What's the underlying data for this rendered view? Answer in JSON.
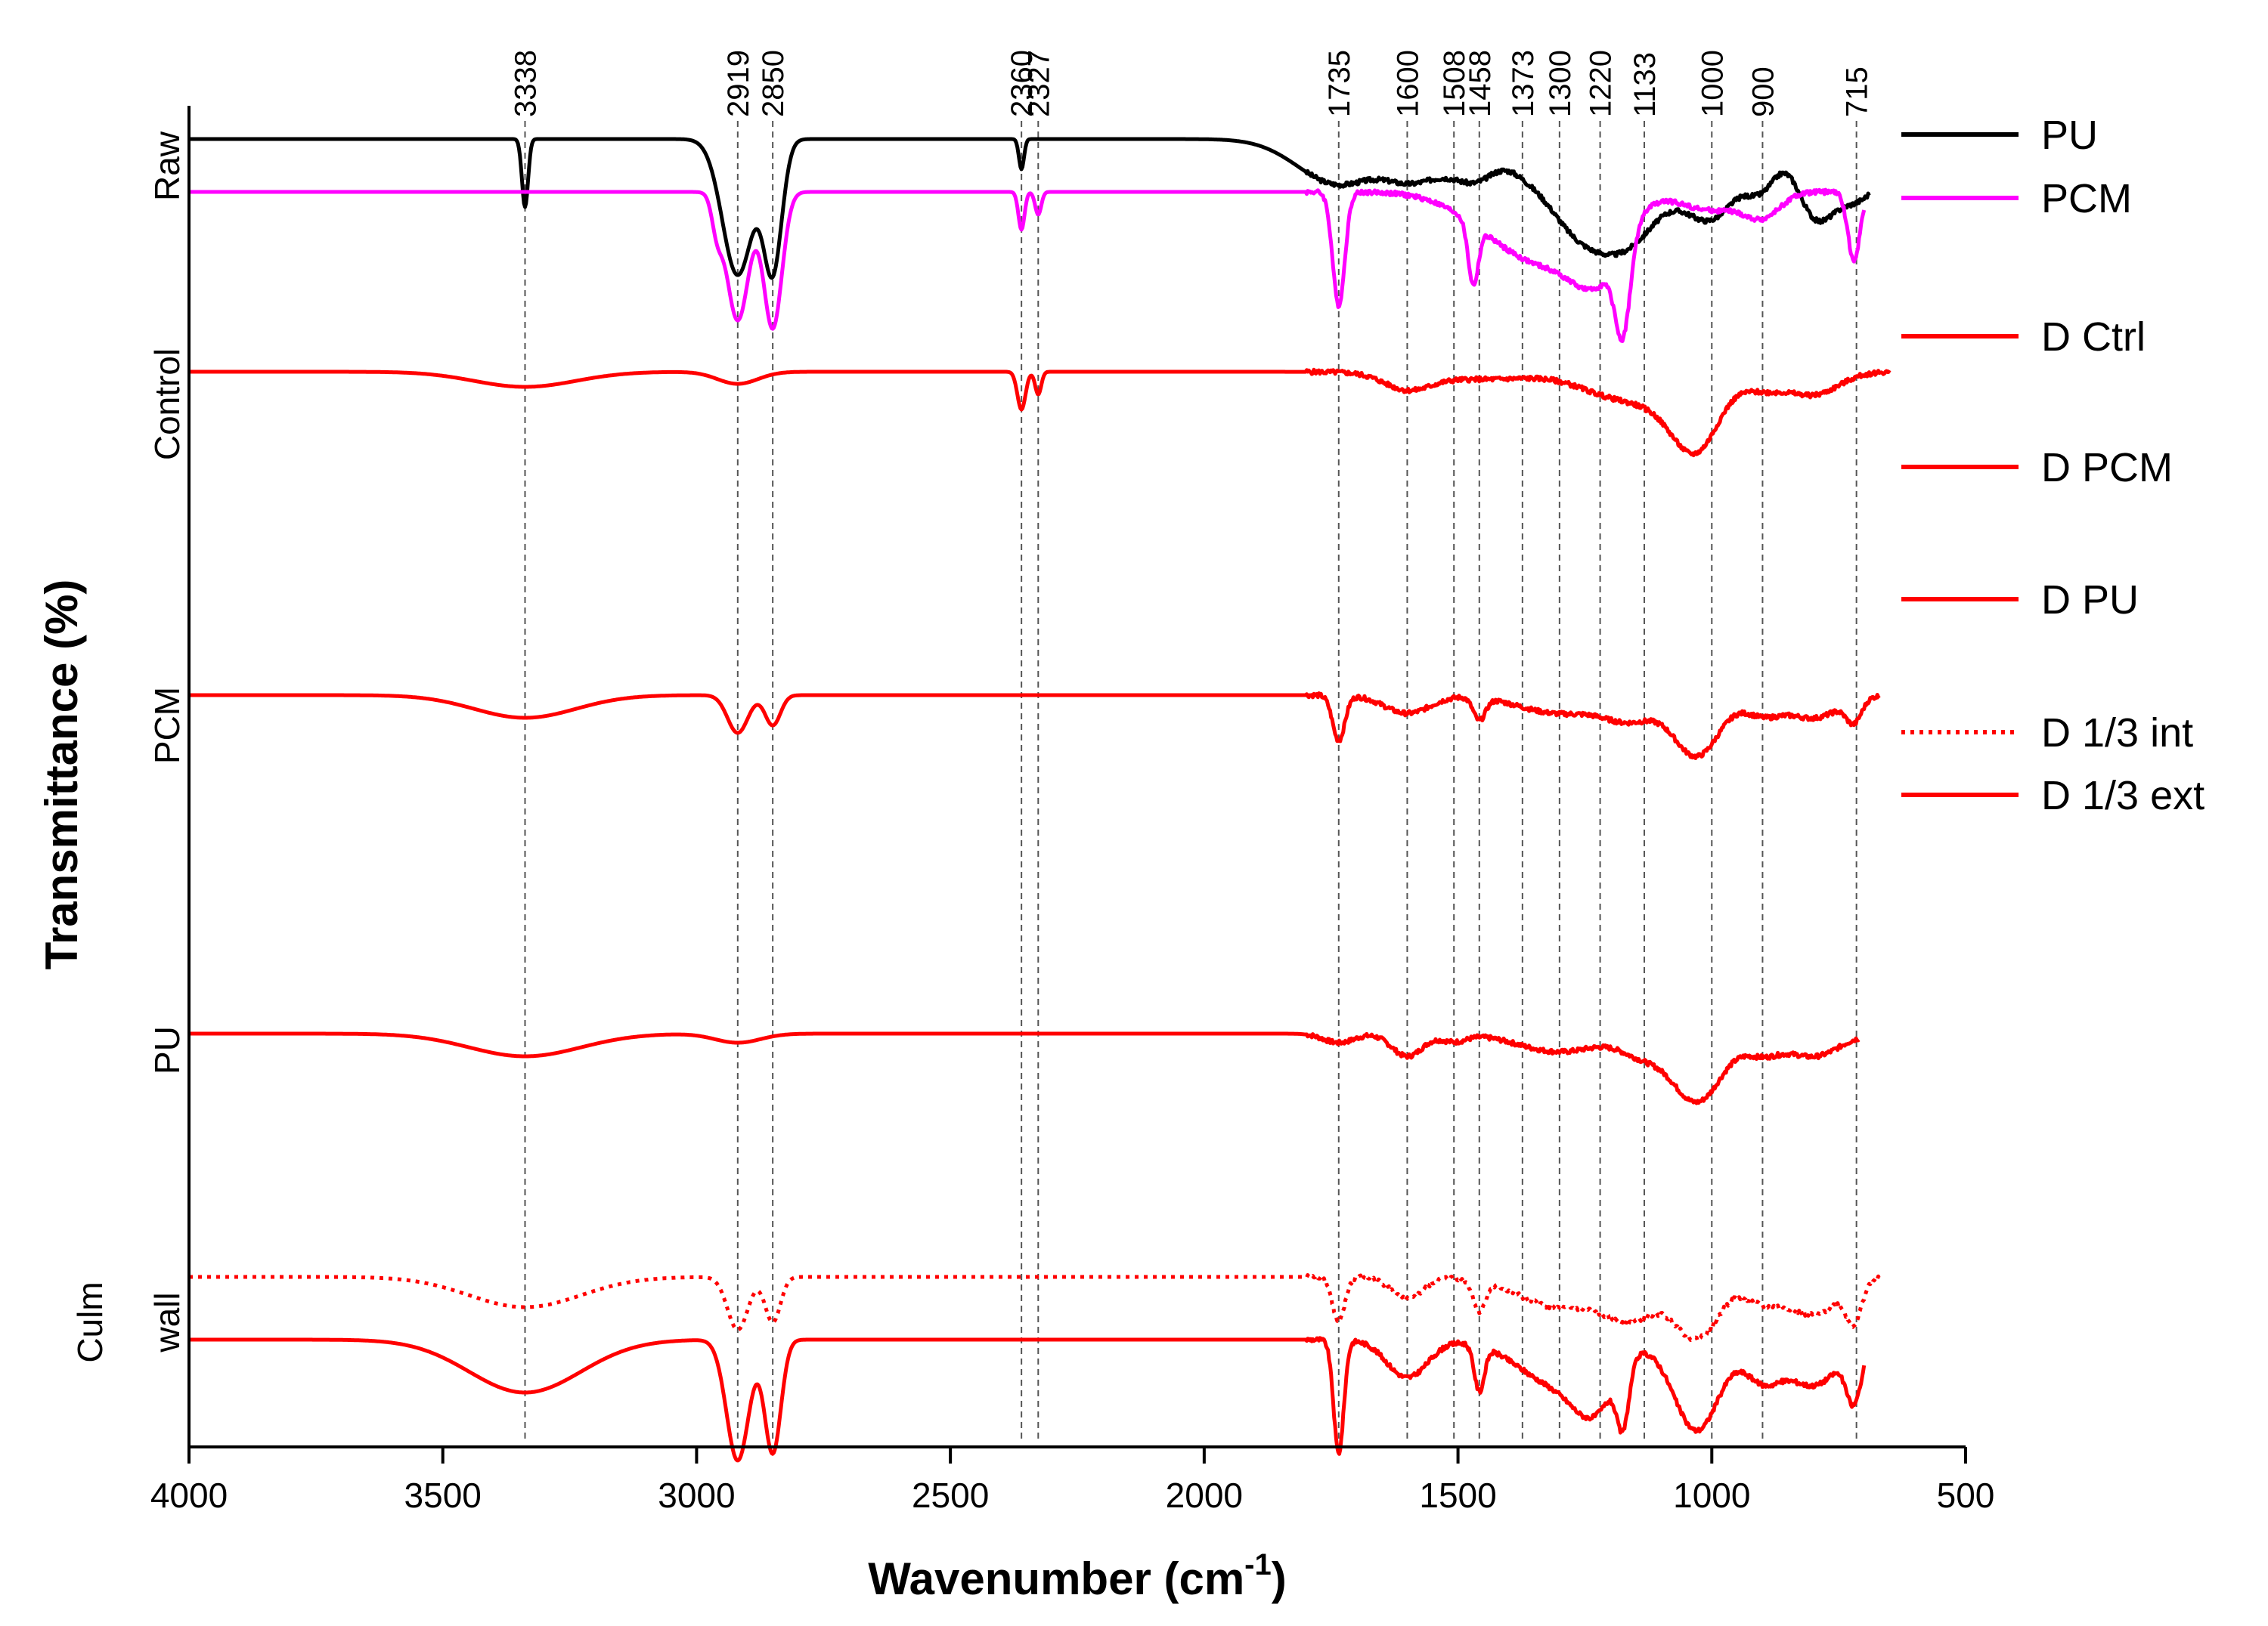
{
  "chart_data": {
    "type": "line",
    "title": "",
    "xlabel": "Wavenumber (cm",
    "xlabel_sup": "-1",
    "xlabel_close": ")",
    "ylabel": "Transmittance (%)",
    "xlim": [
      4000,
      500
    ],
    "xticks": [
      4000,
      3500,
      3000,
      2500,
      2000,
      1500,
      1000,
      500
    ],
    "peaks": [
      3338,
      2919,
      2850,
      2360,
      2327,
      1735,
      1600,
      1508,
      1458,
      1373,
      1300,
      1220,
      1133,
      1000,
      900,
      715
    ],
    "group_labels": [
      {
        "text": "Raw"
      },
      {
        "text": "Control"
      },
      {
        "text": "PCM"
      },
      {
        "text": "PU"
      },
      {
        "text": "Culm"
      },
      {
        "text": "wall"
      }
    ],
    "legend": [
      {
        "name": "PU",
        "color": "#000000",
        "style": "solid"
      },
      {
        "name": "PCM",
        "color": "#ff00ff",
        "style": "solid"
      },
      {
        "name": "D Ctrl",
        "color": "#ff0000",
        "style": "solid"
      },
      {
        "name": "D PCM",
        "color": "#ff0000",
        "style": "solid"
      },
      {
        "name": "D PU",
        "color": "#ff0000",
        "style": "solid"
      },
      {
        "name": "D 1/3 int",
        "color": "#ff0000",
        "style": "dotted"
      },
      {
        "name": "D 1/3 ext",
        "color": "#ff0000",
        "style": "solid"
      }
    ],
    "series": [
      {
        "name": "PU",
        "color": "#000000",
        "style": "solid",
        "baseline": 100,
        "dips": [
          [
            3338,
            45,
            6
          ],
          [
            2919,
            90,
            30
          ],
          [
            2850,
            85,
            18
          ],
          [
            2360,
            20,
            5
          ],
          [
            1735,
            30,
            80
          ],
          [
            1600,
            15,
            45
          ],
          [
            1508,
            20,
            65
          ],
          [
            1458,
            12,
            35
          ],
          [
            1373,
            10,
            35
          ],
          [
            1300,
            18,
            50
          ],
          [
            1220,
            60,
            75
          ],
          [
            1133,
            30,
            60
          ],
          [
            1000,
            50,
            55
          ],
          [
            900,
            25,
            30
          ],
          [
            800,
            40,
            35
          ],
          [
            715,
            40,
            55
          ]
        ],
        "tail": 690
      },
      {
        "name": "PCM",
        "color": "#ff00ff",
        "style": "solid",
        "baseline": 100,
        "dips": [
          [
            2960,
            20,
            10
          ],
          [
            2919,
            85,
            22
          ],
          [
            2850,
            90,
            18
          ],
          [
            2360,
            25,
            6
          ],
          [
            2327,
            15,
            6
          ],
          [
            1735,
            75,
            12
          ],
          [
            1470,
            40,
            10
          ],
          [
            1400,
            25,
            90
          ],
          [
            1300,
            30,
            80
          ],
          [
            1220,
            40,
            50
          ],
          [
            1175,
            60,
            15
          ],
          [
            1000,
            12,
            60
          ],
          [
            900,
            15,
            35
          ],
          [
            720,
            45,
            12
          ]
        ],
        "tail": 700
      },
      {
        "name": "D Ctrl",
        "color": "#ff0000",
        "style": "solid",
        "baseline": 100,
        "dips": [
          [
            3338,
            10,
            100
          ],
          [
            2919,
            8,
            40
          ],
          [
            2360,
            25,
            8
          ],
          [
            2327,
            15,
            6
          ],
          [
            1600,
            10,
            45
          ],
          [
            1450,
            5,
            120
          ],
          [
            1220,
            8,
            60
          ],
          [
            1100,
            20,
            80
          ],
          [
            1030,
            40,
            45
          ],
          [
            900,
            10,
            40
          ],
          [
            800,
            15,
            50
          ]
        ],
        "tail": 650
      },
      {
        "name": "D PCM",
        "color": "#ff0000",
        "style": "solid",
        "baseline": 100,
        "dips": [
          [
            3338,
            15,
            100
          ],
          [
            2919,
            25,
            20
          ],
          [
            2850,
            20,
            15
          ],
          [
            1735,
            30,
            12
          ],
          [
            1600,
            12,
            45
          ],
          [
            1458,
            15,
            12
          ],
          [
            1300,
            12,
            80
          ],
          [
            1160,
            15,
            50
          ],
          [
            1030,
            40,
            45
          ],
          [
            900,
            12,
            35
          ],
          [
            800,
            15,
            50
          ],
          [
            720,
            15,
            15
          ]
        ],
        "tail": 670
      },
      {
        "name": "D PU",
        "color": "#ff0000",
        "style": "solid",
        "baseline": 100,
        "dips": [
          [
            3338,
            15,
            110
          ],
          [
            2919,
            6,
            45
          ],
          [
            1735,
            6,
            30
          ],
          [
            1600,
            15,
            30
          ],
          [
            1508,
            5,
            25
          ],
          [
            1300,
            12,
            80
          ],
          [
            1140,
            12,
            40
          ],
          [
            1030,
            45,
            50
          ],
          [
            900,
            12,
            35
          ],
          [
            800,
            15,
            50
          ]
        ],
        "tail": 710
      },
      {
        "name": "D 1/3 int",
        "color": "#ff0000",
        "style": "dotted",
        "baseline": 100,
        "dips": [
          [
            3338,
            20,
            110
          ],
          [
            2919,
            35,
            20
          ],
          [
            2850,
            30,
            15
          ],
          [
            1735,
            30,
            12
          ],
          [
            1600,
            15,
            30
          ],
          [
            1458,
            20,
            12
          ],
          [
            1300,
            20,
            80
          ],
          [
            1160,
            25,
            50
          ],
          [
            1030,
            40,
            45
          ],
          [
            900,
            15,
            35
          ],
          [
            800,
            25,
            50
          ],
          [
            720,
            25,
            15
          ]
        ],
        "tail": 670
      },
      {
        "name": "D 1/3 ext",
        "color": "#ff0000",
        "style": "solid",
        "baseline": 100,
        "dips": [
          [
            3338,
            35,
            110
          ],
          [
            2919,
            80,
            22
          ],
          [
            2850,
            75,
            16
          ],
          [
            1735,
            75,
            10
          ],
          [
            1600,
            25,
            40
          ],
          [
            1458,
            30,
            10
          ],
          [
            1300,
            30,
            80
          ],
          [
            1230,
            30,
            40
          ],
          [
            1175,
            40,
            12
          ],
          [
            1030,
            60,
            45
          ],
          [
            900,
            25,
            35
          ],
          [
            800,
            30,
            50
          ],
          [
            720,
            35,
            15
          ]
        ],
        "tail": 700
      }
    ]
  }
}
